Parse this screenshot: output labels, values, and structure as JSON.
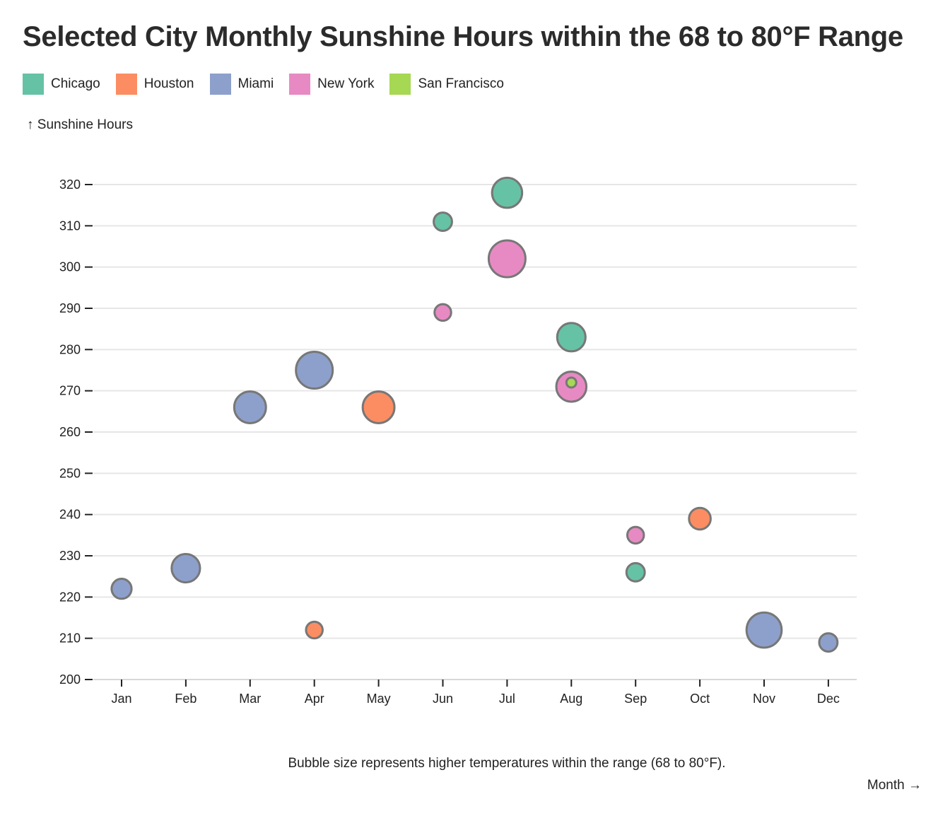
{
  "chart_data": {
    "type": "scatter",
    "title": "Selected City Monthly Sunshine Hours within the 68 to 80°F Range",
    "ylabel": "↑ Sunshine Hours",
    "xlabel": "Month →",
    "note": "Bubble size represents higher temperatures within the range (68 to 80°F).",
    "categories": [
      "Jan",
      "Feb",
      "Mar",
      "Apr",
      "May",
      "Jun",
      "Jul",
      "Aug",
      "Sep",
      "Oct",
      "Nov",
      "Dec"
    ],
    "ylim": [
      200,
      320
    ],
    "yticks": [
      200,
      210,
      220,
      230,
      240,
      250,
      260,
      270,
      280,
      290,
      300,
      310,
      320
    ],
    "grid": true,
    "legend_position": "top-left",
    "series": [
      {
        "name": "Chicago",
        "color": "#66c2a5",
        "points": [
          {
            "x": "Jun",
            "y": 311,
            "size": 69
          },
          {
            "x": "Jul",
            "y": 318,
            "size": 76
          },
          {
            "x": "Aug",
            "y": 283,
            "size": 75
          },
          {
            "x": "Sep",
            "y": 226,
            "size": 69
          }
        ]
      },
      {
        "name": "Houston",
        "color": "#fc8d62",
        "points": [
          {
            "x": "Apr",
            "y": 212,
            "size": 68
          },
          {
            "x": "May",
            "y": 266,
            "size": 77
          },
          {
            "x": "Oct",
            "y": 239,
            "size": 71
          }
        ]
      },
      {
        "name": "Miami",
        "color": "#8da0cb",
        "points": [
          {
            "x": "Jan",
            "y": 222,
            "size": 70
          },
          {
            "x": "Feb",
            "y": 227,
            "size": 75
          },
          {
            "x": "Mar",
            "y": 266,
            "size": 77
          },
          {
            "x": "Apr",
            "y": 275,
            "size": 80
          },
          {
            "x": "Nov",
            "y": 212,
            "size": 79
          },
          {
            "x": "Dec",
            "y": 209,
            "size": 69
          }
        ]
      },
      {
        "name": "New York",
        "color": "#e78ac3",
        "points": [
          {
            "x": "Jun",
            "y": 289,
            "size": 68
          },
          {
            "x": "Jul",
            "y": 302,
            "size": 80
          },
          {
            "x": "Aug",
            "y": 271,
            "size": 76
          },
          {
            "x": "Sep",
            "y": 235,
            "size": 68
          }
        ]
      },
      {
        "name": "San Francisco",
        "color": "#a6d854",
        "points": [
          {
            "x": "Aug",
            "y": 272,
            "size": 64
          }
        ]
      }
    ]
  }
}
